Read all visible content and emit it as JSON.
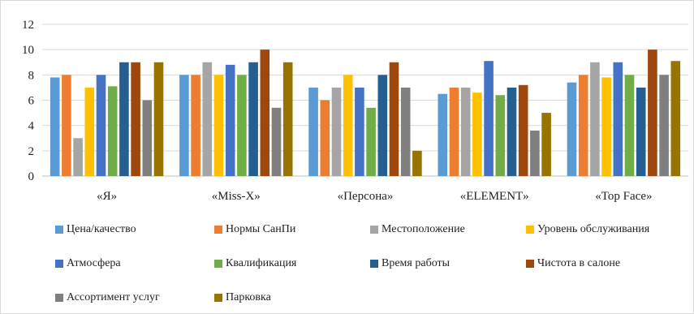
{
  "chart_data": {
    "type": "bar",
    "title": "",
    "xlabel": "",
    "ylabel": "",
    "ylim": [
      0,
      12
    ],
    "yticks": [
      0,
      2,
      4,
      6,
      8,
      10,
      12
    ],
    "grid": true,
    "legend_position": "bottom",
    "categories": [
      "«Я»",
      "«Miss-X»",
      "«Персона»",
      "«ELEMENT»",
      "«Top Face»"
    ],
    "series": [
      {
        "name": "Цена/качество",
        "color": "#5B9BD5",
        "values": [
          7.8,
          8,
          7,
          6.5,
          7.4
        ]
      },
      {
        "name": "Нормы СанПи",
        "color": "#ED7D31",
        "values": [
          8,
          8,
          6,
          7,
          8
        ]
      },
      {
        "name": "Местоположение",
        "color": "#A5A5A5",
        "values": [
          3,
          9,
          7,
          7,
          9
        ]
      },
      {
        "name": "Уровень обслуживания",
        "color": "#FFC000",
        "values": [
          7,
          8,
          8,
          6.6,
          7.8
        ]
      },
      {
        "name": "Атмосфера",
        "color": "#4472C4",
        "values": [
          8,
          8.8,
          7,
          9.1,
          9
        ]
      },
      {
        "name": "Квалификация",
        "color": "#70AD47",
        "values": [
          7.1,
          8,
          5.4,
          6.4,
          8
        ]
      },
      {
        "name": "Время работы",
        "color": "#255E91",
        "values": [
          9,
          9,
          8,
          7,
          7
        ]
      },
      {
        "name": "Чистота в салоне",
        "color": "#9E480E",
        "values": [
          9,
          10,
          9,
          7.2,
          10
        ]
      },
      {
        "name": "Ассортимент услуг",
        "color": "#7F7F7F",
        "values": [
          6,
          5.4,
          7,
          3.6,
          8
        ]
      },
      {
        "name": "Парковка",
        "color": "#997300",
        "values": [
          9,
          9,
          2,
          5,
          9.1
        ]
      }
    ]
  }
}
